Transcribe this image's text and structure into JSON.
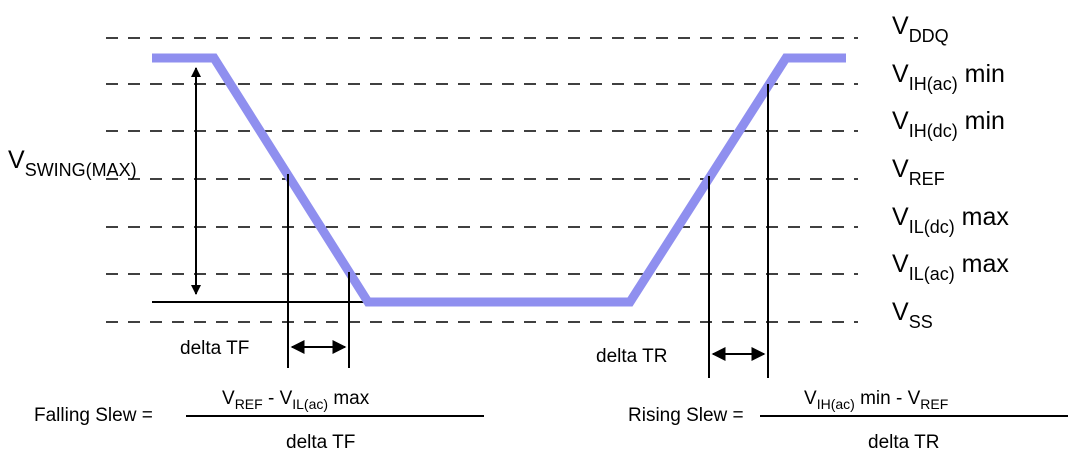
{
  "levels": [
    {
      "main": "V",
      "sub": "DDQ",
      "suffix": ""
    },
    {
      "main": "V",
      "sub": "IH(ac)",
      "suffix": " min"
    },
    {
      "main": "V",
      "sub": "IH(dc)",
      "suffix": " min"
    },
    {
      "main": "V",
      "sub": "REF",
      "suffix": ""
    },
    {
      "main": "V",
      "sub": "IL(dc)",
      "suffix": " max"
    },
    {
      "main": "V",
      "sub": "IL(ac)",
      "suffix": " max"
    },
    {
      "main": "V",
      "sub": "SS",
      "suffix": ""
    }
  ],
  "swing": {
    "main": "V",
    "sub": "SWING(MAX)"
  },
  "delta_tf": "delta TF",
  "delta_tr": "delta TR",
  "falling": {
    "prefix": "Falling Slew =",
    "num_v1": "V",
    "num_s1": "REF",
    "num_mid": " - V",
    "num_s2": "IL(ac)",
    "num_end": " max",
    "den": "delta TF"
  },
  "rising": {
    "prefix": "Rising Slew =",
    "num_v1": "V",
    "num_s1": "IH(ac)",
    "num_mid": " min - V",
    "num_s2": "REF",
    "num_end": "",
    "den": "delta TR"
  },
  "colors": {
    "waveform": "#8f8fef",
    "lines": "#000000"
  }
}
